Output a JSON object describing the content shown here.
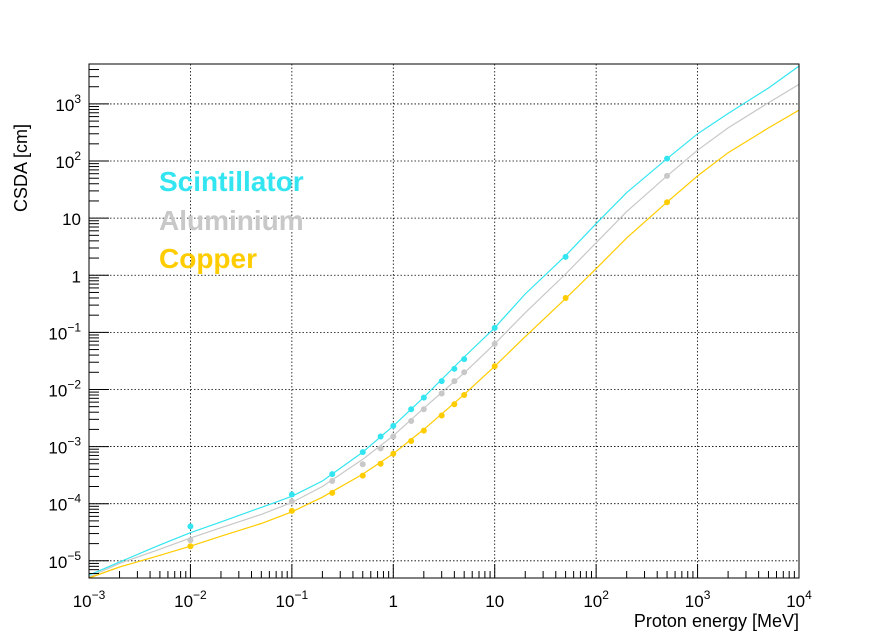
{
  "chart_data": {
    "type": "line",
    "xlabel": "Proton energy [MeV]",
    "ylabel": "CSDA [cm]",
    "xscale": "log",
    "yscale": "log",
    "xlim": [
      0.001,
      10000
    ],
    "ylim": [
      5e-06,
      5000
    ],
    "grid": true,
    "legend_position": "top-left",
    "x_ticks": [
      {
        "base": "10",
        "exp": "−3",
        "value": 0.001
      },
      {
        "base": "10",
        "exp": "−2",
        "value": 0.01
      },
      {
        "base": "10",
        "exp": "−1",
        "value": 0.1
      },
      {
        "base": "1",
        "exp": "",
        "value": 1
      },
      {
        "base": "10",
        "exp": "",
        "value": 10
      },
      {
        "base": "10",
        "exp": "2",
        "value": 100
      },
      {
        "base": "10",
        "exp": "3",
        "value": 1000
      },
      {
        "base": "10",
        "exp": "4",
        "value": 10000
      }
    ],
    "y_ticks": [
      {
        "base": "10",
        "exp": "−5",
        "value": 1e-05
      },
      {
        "base": "10",
        "exp": "−4",
        "value": 0.0001
      },
      {
        "base": "10",
        "exp": "−3",
        "value": 0.001
      },
      {
        "base": "10",
        "exp": "−2",
        "value": 0.01
      },
      {
        "base": "10",
        "exp": "−1",
        "value": 0.1
      },
      {
        "base": "1",
        "exp": "",
        "value": 1
      },
      {
        "base": "10",
        "exp": "",
        "value": 10
      },
      {
        "base": "10",
        "exp": "2",
        "value": 100
      },
      {
        "base": "10",
        "exp": "3",
        "value": 1000
      }
    ],
    "series": [
      {
        "name": "Scintillator",
        "color": "#33e5f0",
        "line_x": [
          0.001,
          0.002,
          0.005,
          0.01,
          0.02,
          0.05,
          0.1,
          0.2,
          0.5,
          1,
          2,
          5,
          10,
          20,
          50,
          100,
          200,
          500,
          1000,
          2000,
          5000,
          10000
        ],
        "line_y": [
          5.6e-06,
          9.5e-06,
          1.9e-05,
          3.1e-05,
          4.8e-05,
          8.6e-05,
          0.000135,
          0.00025,
          0.0008,
          0.0023,
          0.0073,
          0.037,
          0.12,
          0.47,
          2.2,
          8.0,
          28,
          110,
          300,
          680,
          1900,
          4600
        ],
        "points_x": [
          0.01,
          0.1,
          0.25,
          0.5,
          0.75,
          1,
          1.5,
          2,
          3,
          4,
          5,
          10,
          50,
          500
        ],
        "points_y": [
          4e-05,
          0.000145,
          0.00033,
          0.0008,
          0.0015,
          0.0023,
          0.0045,
          0.0072,
          0.014,
          0.023,
          0.034,
          0.12,
          2.1,
          110
        ]
      },
      {
        "name": "Aluminium",
        "color": "#c8c8c8",
        "line_x": [
          0.001,
          0.002,
          0.005,
          0.01,
          0.02,
          0.05,
          0.1,
          0.2,
          0.5,
          1,
          2,
          5,
          10,
          20,
          50,
          100,
          200,
          500,
          1000,
          2000,
          5000,
          10000
        ],
        "line_y": [
          5.2e-06,
          9e-06,
          1.6e-05,
          2.5e-05,
          3.8e-05,
          6.5e-05,
          0.000105,
          0.0002,
          0.0006,
          0.00155,
          0.0047,
          0.0195,
          0.063,
          0.22,
          1.05,
          3.7,
          13,
          55,
          155,
          380,
          1050,
          2200
        ],
        "points_x": [
          0.01,
          0.1,
          0.25,
          0.5,
          0.75,
          1,
          1.5,
          2,
          3,
          4,
          5,
          10,
          500
        ],
        "points_y": [
          2.3e-05,
          0.00011,
          0.00025,
          0.00049,
          0.00093,
          0.0015,
          0.0028,
          0.0045,
          0.0085,
          0.014,
          0.02,
          0.063,
          55
        ]
      },
      {
        "name": "Copper",
        "color": "#ffcc00",
        "line_x": [
          0.001,
          0.002,
          0.005,
          0.01,
          0.02,
          0.05,
          0.1,
          0.2,
          0.5,
          1,
          2,
          5,
          10,
          20,
          50,
          100,
          200,
          500,
          1000,
          2000,
          5000,
          10000
        ],
        "line_y": [
          5e-06,
          7.8e-06,
          1.25e-05,
          1.8e-05,
          2.7e-05,
          4.5e-05,
          7.2e-05,
          0.00013,
          0.00033,
          0.00075,
          0.002,
          0.0082,
          0.0255,
          0.084,
          0.39,
          1.3,
          4.5,
          19,
          55,
          140,
          380,
          780
        ],
        "points_x": [
          0.01,
          0.1,
          0.25,
          0.5,
          0.75,
          1,
          1.5,
          2,
          3,
          4,
          5,
          10,
          50,
          500
        ],
        "points_y": [
          1.8e-05,
          7.5e-05,
          0.000155,
          0.00031,
          0.0005,
          0.00075,
          0.00125,
          0.0019,
          0.0035,
          0.0055,
          0.008,
          0.0255,
          0.4,
          19
        ]
      }
    ]
  }
}
